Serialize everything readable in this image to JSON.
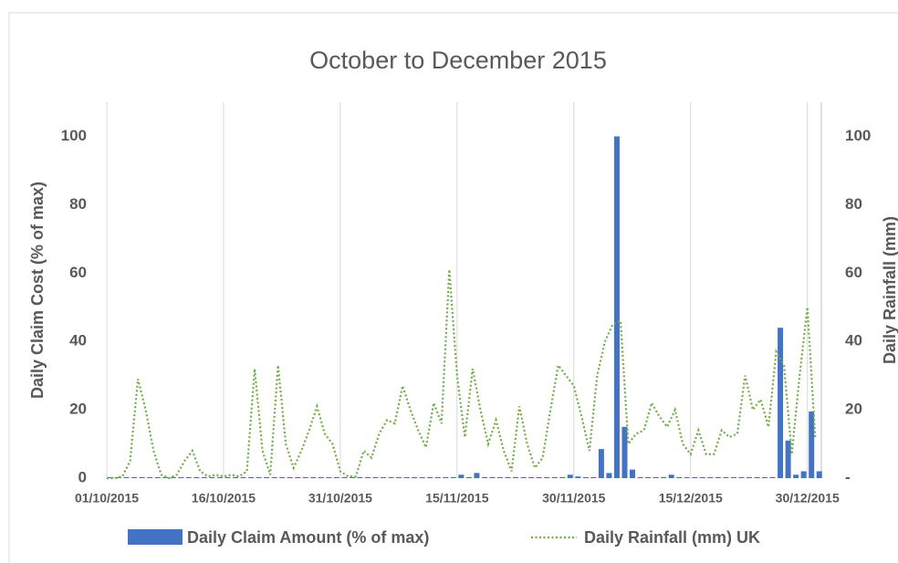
{
  "chart_data": {
    "type": "bar-line",
    "title": "October to December 2015",
    "y_label": "Daily Claim Cost (% of max)",
    "y2_label": "Daily Rainfall (mm)",
    "categories": [
      "01/10/2015",
      "02/10/2015",
      "03/10/2015",
      "04/10/2015",
      "05/10/2015",
      "06/10/2015",
      "07/10/2015",
      "08/10/2015",
      "09/10/2015",
      "10/10/2015",
      "11/10/2015",
      "12/10/2015",
      "13/10/2015",
      "14/10/2015",
      "15/10/2015",
      "16/10/2015",
      "17/10/2015",
      "18/10/2015",
      "19/10/2015",
      "20/10/2015",
      "21/10/2015",
      "22/10/2015",
      "23/10/2015",
      "24/10/2015",
      "25/10/2015",
      "26/10/2015",
      "27/10/2015",
      "28/10/2015",
      "29/10/2015",
      "30/10/2015",
      "31/10/2015",
      "01/11/2015",
      "02/11/2015",
      "03/11/2015",
      "04/11/2015",
      "05/11/2015",
      "06/11/2015",
      "07/11/2015",
      "08/11/2015",
      "09/11/2015",
      "10/11/2015",
      "11/11/2015",
      "12/11/2015",
      "13/11/2015",
      "14/11/2015",
      "15/11/2015",
      "16/11/2015",
      "17/11/2015",
      "18/11/2015",
      "19/11/2015",
      "20/11/2015",
      "21/11/2015",
      "22/11/2015",
      "23/11/2015",
      "24/11/2015",
      "25/11/2015",
      "26/11/2015",
      "27/11/2015",
      "28/11/2015",
      "29/11/2015",
      "30/11/2015",
      "01/12/2015",
      "02/12/2015",
      "03/12/2015",
      "04/12/2015",
      "05/12/2015",
      "06/12/2015",
      "07/12/2015",
      "08/12/2015",
      "09/12/2015",
      "10/12/2015",
      "11/12/2015",
      "12/12/2015",
      "13/12/2015",
      "14/12/2015",
      "15/12/2015",
      "16/12/2015",
      "17/12/2015",
      "18/12/2015",
      "19/12/2015",
      "20/12/2015",
      "21/12/2015",
      "22/12/2015",
      "23/12/2015",
      "24/12/2015",
      "25/12/2015",
      "26/12/2015",
      "27/12/2015",
      "28/12/2015",
      "29/12/2015",
      "30/12/2015",
      "31/12/2015"
    ],
    "xticks": [
      "01/10/2015",
      "16/10/2015",
      "31/10/2015",
      "15/11/2015",
      "30/11/2015",
      "15/12/2015",
      "30/12/2015"
    ],
    "series": [
      {
        "name": "Daily Claim Amount (% of max)",
        "kind": "bar",
        "color": "#4472c4",
        "values": [
          0.3,
          0.3,
          0.3,
          0.3,
          0.3,
          0.3,
          0.3,
          0.3,
          0.3,
          0.3,
          0.3,
          0.3,
          0.3,
          0.3,
          0.3,
          0.3,
          0.3,
          0.3,
          0.3,
          0.3,
          0.3,
          0.3,
          0.3,
          0.3,
          0.3,
          0.3,
          0.3,
          0.3,
          0.3,
          0.3,
          0.3,
          0.3,
          0.3,
          0.3,
          0.3,
          0.3,
          0.3,
          0.3,
          0.3,
          0.3,
          0.3,
          0.3,
          0.3,
          0.3,
          0.3,
          1,
          0.3,
          1.5,
          0.3,
          0.3,
          0.3,
          0.3,
          0.3,
          0.3,
          0.3,
          0.3,
          0.3,
          0.3,
          0.3,
          1,
          0.5,
          0.3,
          0.3,
          8.5,
          1.5,
          100,
          15,
          2.5,
          0.3,
          0.3,
          0.3,
          0.3,
          1,
          0.3,
          0.3,
          0.3,
          0.3,
          0.3,
          0.3,
          0.3,
          0.3,
          0.3,
          0.3,
          0.3,
          0.3,
          0.3,
          44,
          11,
          1,
          2,
          19.5,
          2
        ]
      },
      {
        "name": "Daily Rainfall (mm) UK",
        "kind": "line",
        "axis": "y2",
        "color": "#70ad47",
        "values": [
          0,
          0,
          0.5,
          5,
          29,
          20,
          8,
          1,
          0,
          1,
          5,
          8,
          2,
          0.5,
          1,
          0.5,
          1,
          0.5,
          2,
          32,
          8,
          1,
          33,
          10,
          3,
          8,
          14,
          21,
          13,
          10,
          2,
          0.5,
          0.5,
          8,
          6,
          13,
          17,
          16,
          27,
          20,
          14,
          9,
          22,
          16,
          61,
          30,
          12,
          32,
          20,
          10,
          17,
          8,
          2,
          21,
          10,
          3,
          6,
          20,
          33,
          30,
          27,
          18,
          8,
          30,
          40,
          45,
          46,
          10,
          13,
          14,
          22,
          18,
          15,
          20,
          10,
          7,
          14,
          7,
          7,
          14,
          12,
          13,
          30,
          20,
          23,
          15,
          37,
          33,
          7,
          30,
          50,
          12
        ]
      }
    ],
    "ylim": [
      0,
      110
    ],
    "yticks": [
      0,
      20,
      40,
      60,
      80,
      100
    ],
    "y2lim": [
      0,
      110
    ],
    "y2ticks": [
      {
        "value": 0,
        "label": "-"
      },
      20,
      40,
      60,
      80,
      100
    ],
    "grid": "x"
  }
}
